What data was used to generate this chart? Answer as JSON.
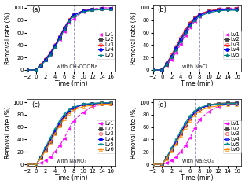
{
  "time_points": [
    -2,
    0,
    1,
    2,
    3,
    4,
    5,
    6,
    7,
    8,
    10,
    12,
    14,
    16
  ],
  "panels": {
    "a": {
      "label": "(a)",
      "annotation": "with CH₃COONa",
      "vline": 8,
      "series": {
        "Lv1": {
          "color": "#ff00ff",
          "marker": "<",
          "ls": "--",
          "mfc": "#ff00ff",
          "values": [
            0,
            0,
            8,
            16,
            25,
            36,
            49,
            62,
            76,
            82,
            94,
            98,
            100,
            100
          ]
        },
        "Lv2": {
          "color": "#404040",
          "marker": "s",
          "ls": "-",
          "mfc": "#404040",
          "values": [
            0,
            0,
            8,
            16,
            26,
            38,
            52,
            66,
            80,
            88,
            95,
            97,
            98,
            98
          ]
        },
        "Lv3": {
          "color": "#ff2020",
          "marker": "o",
          "ls": "-",
          "mfc": "none",
          "values": [
            0,
            0,
            9,
            18,
            28,
            40,
            54,
            68,
            81,
            89,
            95,
            97,
            98,
            98
          ]
        },
        "Lv4": {
          "color": "#0000ff",
          "marker": "o",
          "ls": "-",
          "mfc": "#0000ff",
          "values": [
            0,
            0,
            8,
            17,
            27,
            39,
            53,
            67,
            80,
            88,
            95,
            97,
            98,
            98
          ]
        },
        "Lv5": {
          "color": "#008080",
          "marker": "*",
          "ls": "-",
          "mfc": "#008080",
          "values": [
            0,
            0,
            7,
            15,
            24,
            36,
            50,
            64,
            78,
            86,
            93,
            96,
            97,
            97
          ]
        }
      }
    },
    "b": {
      "label": "(b)",
      "annotation": "with NaCl",
      "vline": 8,
      "series": {
        "Lv1": {
          "color": "#ff00ff",
          "marker": "<",
          "ls": "--",
          "mfc": "#ff00ff",
          "values": [
            0,
            0,
            7,
            17,
            28,
            42,
            56,
            68,
            78,
            86,
            94,
            98,
            99,
            100
          ]
        },
        "Lv2": {
          "color": "#404040",
          "marker": "s",
          "ls": "-",
          "mfc": "#404040",
          "values": [
            0,
            0,
            9,
            21,
            34,
            48,
            62,
            74,
            83,
            89,
            95,
            97,
            98,
            98
          ]
        },
        "Lv3": {
          "color": "#ff2020",
          "marker": "o",
          "ls": "-",
          "mfc": "none",
          "values": [
            0,
            0,
            11,
            24,
            38,
            52,
            65,
            76,
            84,
            90,
            95,
            97,
            98,
            98
          ]
        },
        "Lv4": {
          "color": "#0000ff",
          "marker": "o",
          "ls": "-",
          "mfc": "#0000ff",
          "values": [
            0,
            0,
            10,
            22,
            35,
            49,
            62,
            73,
            82,
            88,
            94,
            96,
            97,
            97
          ]
        },
        "Lv5": {
          "color": "#008080",
          "marker": "*",
          "ls": "-",
          "mfc": "#008080",
          "values": [
            0,
            0,
            9,
            20,
            32,
            46,
            59,
            71,
            80,
            86,
            92,
            95,
            96,
            96
          ]
        }
      }
    },
    "c": {
      "label": "(c)",
      "annotation": "with NaNO₃",
      "vline": 8,
      "series": {
        "Lv1": {
          "color": "#ff00ff",
          "marker": "<",
          "ls": "--",
          "mfc": "#ff00ff",
          "values": [
            0,
            0,
            2,
            6,
            12,
            20,
            30,
            42,
            57,
            70,
            84,
            92,
            97,
            99
          ]
        },
        "Lv2": {
          "color": "#404040",
          "marker": "s",
          "ls": "-",
          "mfc": "#404040",
          "values": [
            0,
            0,
            10,
            23,
            37,
            51,
            64,
            76,
            85,
            91,
            96,
            98,
            99,
            99
          ]
        },
        "Lv3": {
          "color": "#ff2020",
          "marker": "o",
          "ls": "-",
          "mfc": "none",
          "values": [
            0,
            0,
            11,
            24,
            38,
            52,
            65,
            76,
            85,
            90,
            96,
            97,
            98,
            98
          ]
        },
        "Lv4": {
          "color": "#0000ff",
          "marker": "o",
          "ls": "-",
          "mfc": "#0000ff",
          "values": [
            0,
            0,
            12,
            26,
            40,
            54,
            67,
            78,
            86,
            91,
            96,
            97,
            98,
            98
          ]
        },
        "Lv5": {
          "color": "#009090",
          "marker": "*",
          "ls": "-",
          "mfc": "#009090",
          "values": [
            0,
            0,
            13,
            28,
            43,
            57,
            70,
            81,
            88,
            92,
            97,
            98,
            99,
            99
          ]
        },
        "Lv6": {
          "color": "#ff8c00",
          "marker": "^",
          "ls": "-",
          "mfc": "none",
          "values": [
            0,
            0,
            10,
            22,
            35,
            49,
            62,
            73,
            82,
            87,
            93,
            95,
            97,
            97
          ]
        }
      }
    },
    "d": {
      "label": "(d)",
      "annotation": "with Na₂SO₄",
      "vline": 7,
      "series": {
        "Lv1": {
          "color": "#ff00ff",
          "marker": "<",
          "ls": "--",
          "mfc": "#ff00ff",
          "values": [
            0,
            0,
            2,
            6,
            12,
            20,
            30,
            43,
            58,
            72,
            85,
            93,
            97,
            99
          ]
        },
        "Lv2": {
          "color": "#404040",
          "marker": "s",
          "ls": "-",
          "mfc": "#404040",
          "values": [
            0,
            0,
            10,
            23,
            36,
            50,
            63,
            75,
            84,
            90,
            96,
            98,
            99,
            99
          ]
        },
        "Lv3": {
          "color": "#ff2020",
          "marker": "o",
          "ls": "-",
          "mfc": "none",
          "values": [
            0,
            0,
            10,
            23,
            36,
            49,
            62,
            74,
            83,
            89,
            95,
            97,
            98,
            98
          ]
        },
        "Lv4": {
          "color": "#0000ff",
          "marker": "o",
          "ls": "-",
          "mfc": "#4444ff",
          "values": [
            0,
            0,
            11,
            24,
            37,
            51,
            64,
            75,
            83,
            89,
            95,
            96,
            97,
            97
          ]
        },
        "Lv5": {
          "color": "#009090",
          "marker": "*",
          "ls": "-",
          "mfc": "#009090",
          "values": [
            0,
            0,
            12,
            26,
            40,
            54,
            67,
            78,
            86,
            91,
            96,
            97,
            98,
            98
          ]
        },
        "Lv6": {
          "color": "#ff8c00",
          "marker": "^",
          "ls": "-",
          "mfc": "none",
          "values": [
            0,
            0,
            9,
            21,
            33,
            47,
            60,
            71,
            80,
            86,
            92,
            94,
            96,
            96
          ]
        }
      }
    }
  },
  "xlim": [
    -2,
    17
  ],
  "ylim": [
    -2,
    105
  ],
  "yticks": [
    0,
    20,
    40,
    60,
    80,
    100
  ],
  "xticks": [
    -2,
    0,
    2,
    4,
    6,
    8,
    10,
    12,
    14,
    16
  ],
  "background_color": "#ffffff",
  "fontsize_label": 5.5,
  "fontsize_tick": 5,
  "fontsize_annot": 4.8,
  "fontsize_legend": 4.8
}
